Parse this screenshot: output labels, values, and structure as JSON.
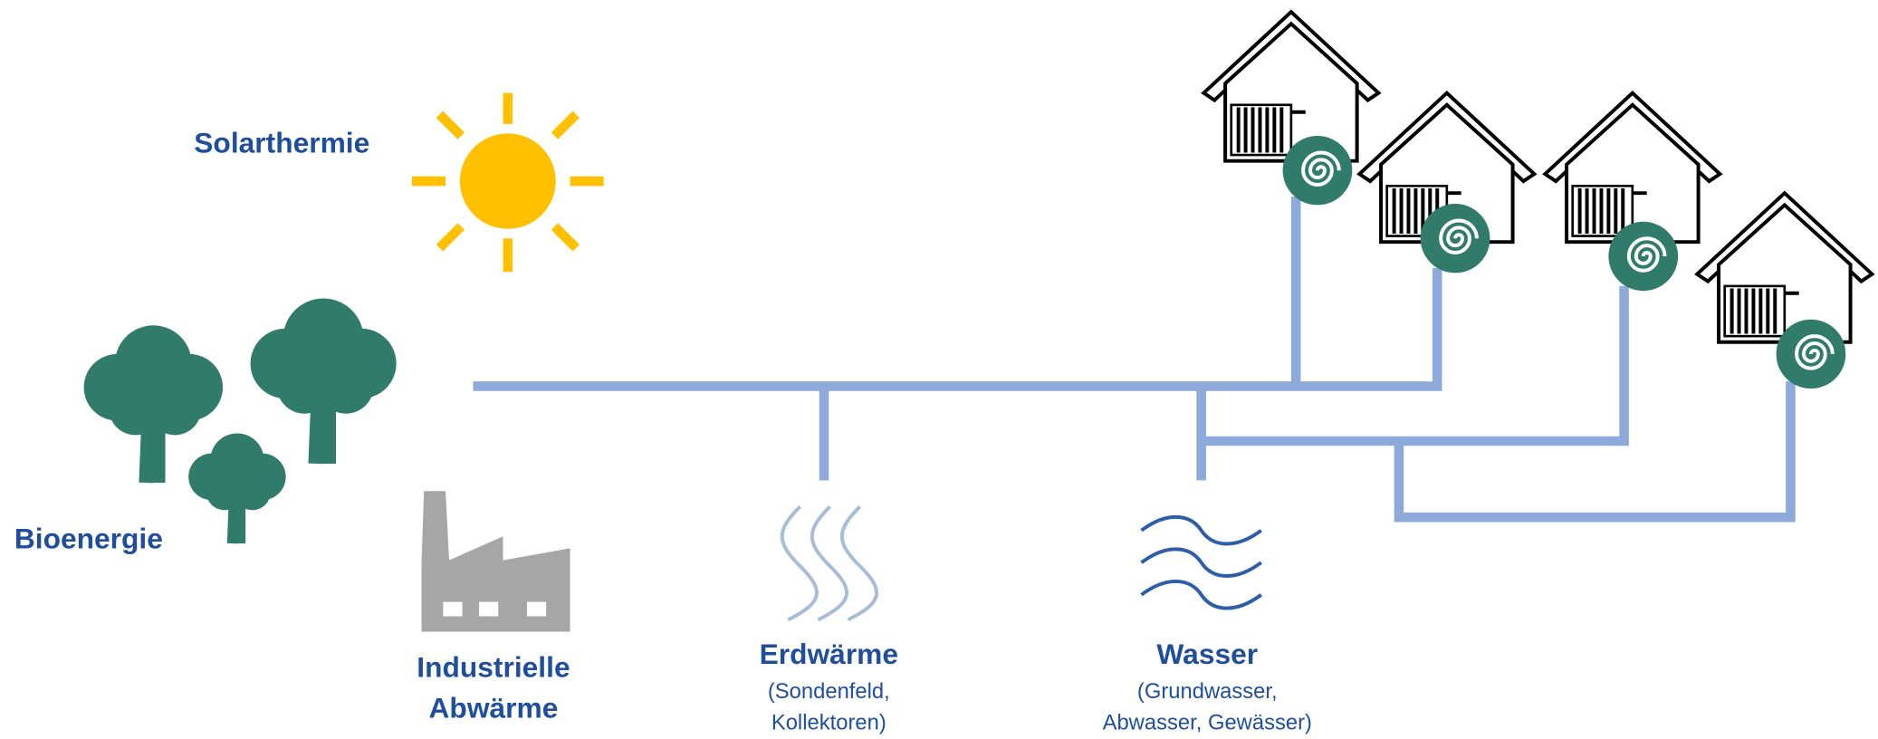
{
  "sources": {
    "solar": {
      "label": "Solarthermie"
    },
    "bio": {
      "label": "Bioenergie"
    },
    "industry": {
      "label": [
        "Industrielle",
        "Abwärme"
      ]
    },
    "geothermal": {
      "label": "Erdwärme",
      "details": [
        "(Sondenfeld,",
        "Kollektoren)"
      ]
    },
    "water": {
      "label": "Wasser",
      "details": [
        "(Grundwasser,",
        "Abwasser, Gewässer)"
      ]
    }
  }
}
